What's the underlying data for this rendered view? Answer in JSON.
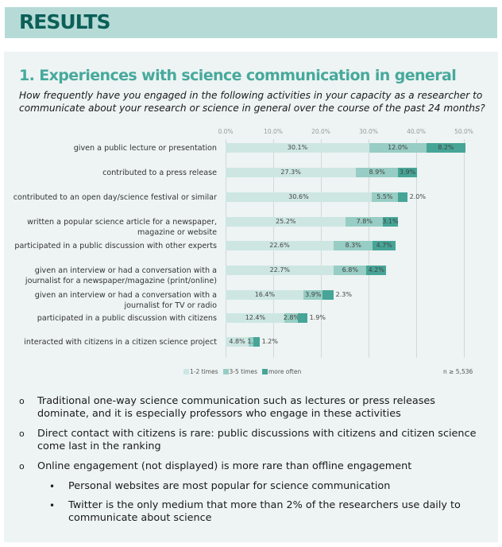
{
  "header": {
    "title": "RESULTS"
  },
  "section": {
    "title": "1. Experiences with science communication in general",
    "question": "How frequently have you engaged in the following activities in your capacity as a researcher to communicate about your research or science in general over the course of the past 24 months?"
  },
  "chart_data": {
    "type": "bar",
    "stacked": true,
    "orientation": "horizontal",
    "xlim": [
      0,
      50
    ],
    "ticks": [
      "0.0%",
      "10.0%",
      "20.0%",
      "30.0%",
      "40.0%",
      "50.0%"
    ],
    "grid": true,
    "legend_position": "bottom-left",
    "note": "n ≥ 5,536",
    "colors": [
      "#cde6e2",
      "#97cdc4",
      "#46a597"
    ],
    "categories": [
      [
        "given a public lecture or presentation"
      ],
      [
        "contributed to a press release"
      ],
      [
        "contributed to an open day/science festival or similar"
      ],
      [
        "written a popular science article for a newspaper,",
        "magazine or website"
      ],
      [
        "participated in a public discussion with other experts"
      ],
      [
        "given an interview or had a conversation with a",
        "journalist for a newspaper/magazine (print/online)"
      ],
      [
        "given an interview or had a conversation with a",
        "journalist for TV or radio"
      ],
      [
        "participated in a public discussion with citizens"
      ],
      [
        "interacted with citizens in a citizen science project"
      ]
    ],
    "series": [
      {
        "name": "1-2 times",
        "values": [
          30.1,
          27.3,
          30.6,
          25.2,
          22.6,
          22.7,
          16.4,
          12.4,
          4.8
        ],
        "labels": [
          "30.1%",
          "27.3%",
          "30.6%",
          "25.2%",
          "22.6%",
          "22.7%",
          "16.4%",
          "12.4%",
          "4.8%"
        ]
      },
      {
        "name": "3-5 times",
        "values": [
          12.0,
          8.9,
          5.5,
          7.8,
          8.3,
          6.8,
          3.9,
          2.8,
          1.1
        ],
        "labels": [
          "12.0%",
          "8.9%",
          "5.5%",
          "7.8%",
          "8.3%",
          "6.8%",
          "3.9%",
          "2.8%",
          "1...."
        ]
      },
      {
        "name": "more often",
        "values": [
          8.2,
          3.9,
          2.0,
          3.1,
          4.7,
          4.2,
          2.3,
          1.9,
          1.2
        ],
        "labels": [
          "8.2%",
          "3.9%",
          "2.0%",
          "3.1%",
          "4.7%",
          "4.2%",
          "2.3%",
          "1.9%",
          "1.2%"
        ]
      }
    ]
  },
  "bullets": [
    {
      "level": 1,
      "text": "Traditional one-way science communication such as lectures or press releases dominate, and it is especially professors who engage in these activities"
    },
    {
      "level": 1,
      "text": "Direct contact with citizens is rare: public discussions with citizens and citizen science come last in the ranking"
    },
    {
      "level": 1,
      "text": "Online engagement (not displayed) is more rare than offline engagement"
    },
    {
      "level": 2,
      "text": "Personal websites are most popular for science communication"
    },
    {
      "level": 2,
      "text": "Twitter is the only medium that more than 2% of the researchers use daily to communicate about science"
    }
  ],
  "markers": {
    "level1": "o",
    "level2": "•"
  }
}
